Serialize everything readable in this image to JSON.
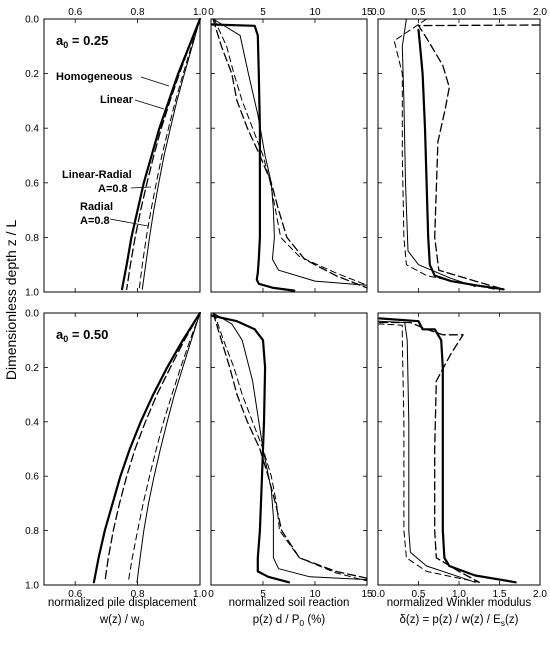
{
  "figure": {
    "y_axis_label": "Dimensionless depth  z / L",
    "panel_labels": [
      {
        "text": "a",
        "sub": "0",
        "value": " = 0.25"
      },
      {
        "text": "a",
        "sub": "0",
        "value": " = 0.50"
      }
    ],
    "curve_annotations": [
      "Homogeneous",
      "Linear",
      "Linear-Radial",
      "A=0.8",
      "Radial",
      "A=0.8"
    ],
    "column_captions": [
      {
        "line1": "normalized pile displacement",
        "line2_parts": [
          "w(z) / w",
          "0",
          ""
        ]
      },
      {
        "line1": "normalized soil reaction",
        "line2_parts": [
          "p(z) d / P",
          "0",
          " (%)"
        ]
      },
      {
        "line1": "normalized Winkler modulus",
        "line2_parts": [
          "δ(z) = p(z) / w(z) / E",
          "s",
          "(z)"
        ]
      }
    ]
  },
  "chart_data": [
    {
      "type": "line",
      "panel": "a0=0.25 displacement",
      "xlim": [
        0.5,
        1.0
      ],
      "ylim": [
        0,
        1.0
      ],
      "y_inverted": true,
      "xticks": [
        "0.6",
        "0.8",
        "1.0"
      ],
      "xtick_values": [
        0.6,
        0.8,
        1.0
      ],
      "xticks_position": "top",
      "yticks": [
        "0.0",
        "0.2",
        "0.4",
        "0.6",
        "0.8",
        "1.0"
      ],
      "series": [
        {
          "name": "Homogeneous",
          "style": "thick-solid",
          "x": [
            1.0,
            0.965,
            0.93,
            0.9,
            0.87,
            0.845,
            0.82,
            0.8,
            0.78,
            0.765,
            0.75
          ],
          "y": [
            0,
            0.1,
            0.2,
            0.3,
            0.4,
            0.5,
            0.6,
            0.7,
            0.8,
            0.9,
            0.99
          ]
        },
        {
          "name": "Linear",
          "style": "dashed",
          "x": [
            1.0,
            0.966,
            0.934,
            0.904,
            0.876,
            0.852,
            0.83,
            0.81,
            0.792,
            0.777,
            0.765
          ],
          "y": [
            0,
            0.1,
            0.2,
            0.3,
            0.4,
            0.5,
            0.6,
            0.7,
            0.8,
            0.9,
            0.99
          ]
        },
        {
          "name": "Linear-Radial A=0.8",
          "style": "thin-dashed",
          "x": [
            1.0,
            0.972,
            0.946,
            0.921,
            0.899,
            0.878,
            0.86,
            0.843,
            0.828,
            0.815,
            0.805
          ],
          "y": [
            0,
            0.1,
            0.2,
            0.3,
            0.4,
            0.5,
            0.6,
            0.7,
            0.8,
            0.9,
            0.99
          ]
        },
        {
          "name": "Radial A=0.8",
          "style": "thin-solid",
          "x": [
            1.0,
            0.975,
            0.95,
            0.926,
            0.905,
            0.885,
            0.868,
            0.852,
            0.838,
            0.826,
            0.815
          ],
          "y": [
            0,
            0.1,
            0.2,
            0.3,
            0.4,
            0.5,
            0.6,
            0.7,
            0.8,
            0.9,
            0.99
          ]
        }
      ]
    },
    {
      "type": "line",
      "panel": "a0=0.25 soil reaction",
      "xlim": [
        0,
        15
      ],
      "ylim": [
        0,
        1.0
      ],
      "y_inverted": true,
      "xticks": [
        "0",
        "5",
        "10",
        "15"
      ],
      "xtick_values": [
        0,
        5,
        10,
        15
      ],
      "xticks_position": "top",
      "series": [
        {
          "name": "Homogeneous",
          "style": "thick-solid",
          "x": [
            0.1,
            4.2,
            4.5,
            4.6,
            4.7,
            4.7,
            4.7,
            4.6,
            4.5,
            4.4,
            4.6,
            6.0,
            8.0
          ],
          "y": [
            0.02,
            0.025,
            0.06,
            0.2,
            0.4,
            0.6,
            0.8,
            0.88,
            0.93,
            0.955,
            0.97,
            0.985,
            0.995
          ]
        },
        {
          "name": "Linear",
          "style": "dashed",
          "x": [
            0.2,
            1.0,
            2.0,
            2.5,
            3.5,
            4.7,
            5.8,
            6.5,
            7.3,
            9.0,
            12.0,
            15.0
          ],
          "y": [
            0.0,
            0.1,
            0.2,
            0.3,
            0.4,
            0.5,
            0.6,
            0.7,
            0.8,
            0.88,
            0.94,
            0.985
          ]
        },
        {
          "name": "Linear-Radial A=0.8",
          "style": "thin-dashed",
          "x": [
            0.3,
            1.5,
            2.2,
            3.0,
            4.0,
            5.0,
            5.7,
            6.2,
            6.7,
            8.5,
            12.0,
            15.0
          ],
          "y": [
            0.0,
            0.1,
            0.2,
            0.3,
            0.4,
            0.5,
            0.6,
            0.7,
            0.8,
            0.87,
            0.93,
            0.975
          ]
        },
        {
          "name": "Radial A=0.8",
          "style": "thin-solid",
          "x": [
            0.2,
            2.8,
            3.6,
            4.5,
            5.2,
            5.8,
            6.0,
            6.1,
            5.9,
            6.5,
            10.0,
            15.0
          ],
          "y": [
            0.0,
            0.06,
            0.2,
            0.35,
            0.5,
            0.6,
            0.7,
            0.8,
            0.88,
            0.92,
            0.96,
            0.975
          ]
        }
      ]
    },
    {
      "type": "line",
      "panel": "a0=0.25 Winkler modulus",
      "xlim": [
        0,
        2.0
      ],
      "ylim": [
        0,
        1.0
      ],
      "y_inverted": true,
      "xticks": [
        "0.0",
        "0.5",
        "1.0",
        "1.5",
        "2.0"
      ],
      "xtick_values": [
        0.0,
        0.5,
        1.0,
        1.5,
        2.0
      ],
      "xticks_position": "top",
      "series": [
        {
          "name": "Homogeneous",
          "style": "thick-solid",
          "x": [
            0.5,
            0.52,
            0.55,
            0.58,
            0.6,
            0.62,
            0.64,
            0.7,
            0.9,
            1.2,
            1.55
          ],
          "y": [
            0.04,
            0.1,
            0.2,
            0.4,
            0.6,
            0.8,
            0.9,
            0.94,
            0.96,
            0.975,
            0.99
          ]
        },
        {
          "name": "Linear",
          "style": "dashed",
          "x": [
            2.0,
            0.5,
            0.6,
            0.8,
            0.88,
            0.83,
            0.74,
            0.7,
            0.75,
            1.2,
            1.55
          ],
          "y": [
            0.022,
            0.024,
            0.07,
            0.17,
            0.25,
            0.33,
            0.45,
            0.8,
            0.92,
            0.96,
            0.99
          ]
        },
        {
          "name": "Linear-Radial A=0.8",
          "style": "thin-dashed",
          "x": [
            0.6,
            0.2,
            0.3,
            0.3,
            0.32,
            0.35,
            0.6,
            1.0,
            1.45
          ],
          "y": [
            0.0,
            0.08,
            0.2,
            0.5,
            0.8,
            0.9,
            0.94,
            0.965,
            0.99
          ]
        },
        {
          "name": "Radial A=0.8",
          "style": "thin-solid",
          "x": [
            0.35,
            0.3,
            0.32,
            0.34,
            0.37,
            0.5,
            0.9,
            1.2
          ],
          "y": [
            0.0,
            0.1,
            0.3,
            0.6,
            0.85,
            0.9,
            0.95,
            0.98
          ]
        }
      ]
    },
    {
      "type": "line",
      "panel": "a0=0.50 displacement",
      "xlim": [
        0.5,
        1.0
      ],
      "ylim": [
        0,
        1.0
      ],
      "y_inverted": true,
      "xticks": [
        "0.6",
        "0.8",
        "1.0"
      ],
      "xtick_values": [
        0.6,
        0.8,
        1.0
      ],
      "xticks_position": "bottom",
      "yticks": [
        "0.0",
        "0.2",
        "0.4",
        "0.6",
        "0.8",
        "1.0"
      ],
      "series": [
        {
          "name": "Homogeneous",
          "style": "thick-solid",
          "x": [
            1.0,
            0.945,
            0.895,
            0.85,
            0.81,
            0.775,
            0.745,
            0.72,
            0.695,
            0.675,
            0.66
          ],
          "y": [
            0,
            0.1,
            0.2,
            0.3,
            0.4,
            0.5,
            0.6,
            0.7,
            0.8,
            0.9,
            0.99
          ]
        },
        {
          "name": "Linear",
          "style": "dashed",
          "x": [
            1.0,
            0.95,
            0.905,
            0.862,
            0.825,
            0.792,
            0.765,
            0.742,
            0.722,
            0.706,
            0.695
          ],
          "y": [
            0,
            0.1,
            0.2,
            0.3,
            0.4,
            0.5,
            0.6,
            0.7,
            0.8,
            0.9,
            0.99
          ]
        },
        {
          "name": "Linear-Radial A=0.8",
          "style": "thin-dashed",
          "x": [
            1.0,
            0.968,
            0.938,
            0.91,
            0.883,
            0.86,
            0.838,
            0.818,
            0.8,
            0.783,
            0.77
          ],
          "y": [
            0,
            0.1,
            0.2,
            0.3,
            0.4,
            0.5,
            0.6,
            0.7,
            0.8,
            0.9,
            0.99
          ]
        },
        {
          "name": "Radial A=0.8",
          "style": "thin-solid",
          "x": [
            1.0,
            0.972,
            0.945,
            0.918,
            0.895,
            0.873,
            0.853,
            0.835,
            0.82,
            0.808,
            0.798
          ],
          "y": [
            0,
            0.1,
            0.2,
            0.3,
            0.4,
            0.5,
            0.6,
            0.7,
            0.8,
            0.9,
            0.99
          ]
        }
      ]
    },
    {
      "type": "line",
      "panel": "a0=0.50 soil reaction",
      "xlim": [
        0,
        15
      ],
      "ylim": [
        0,
        1.0
      ],
      "y_inverted": true,
      "xticks": [
        "0",
        "5",
        "10",
        "15"
      ],
      "xtick_values": [
        0,
        5,
        10,
        15
      ],
      "xticks_position": "bottom",
      "series": [
        {
          "name": "Homogeneous",
          "style": "thick-solid",
          "x": [
            0.1,
            2.5,
            4.2,
            5.0,
            5.2,
            5.1,
            4.9,
            4.7,
            4.5,
            4.5,
            5.5,
            7.5
          ],
          "y": [
            0.01,
            0.03,
            0.06,
            0.1,
            0.2,
            0.4,
            0.6,
            0.8,
            0.9,
            0.95,
            0.97,
            0.99
          ]
        },
        {
          "name": "Linear",
          "style": "dashed",
          "x": [
            0.2,
            1.0,
            1.8,
            2.5,
            3.5,
            4.7,
            5.5,
            6.2,
            6.8,
            8.5,
            12.0,
            15.0
          ],
          "y": [
            0.0,
            0.1,
            0.2,
            0.3,
            0.4,
            0.5,
            0.6,
            0.7,
            0.8,
            0.9,
            0.95,
            0.975
          ]
        },
        {
          "name": "Linear-Radial A=0.8",
          "style": "thin-dashed",
          "x": [
            0.3,
            1.2,
            2.2,
            3.0,
            4.0,
            5.0,
            5.8,
            6.3,
            6.6,
            8.5,
            12.0,
            15.0
          ],
          "y": [
            0.0,
            0.1,
            0.2,
            0.3,
            0.4,
            0.5,
            0.6,
            0.7,
            0.8,
            0.9,
            0.955,
            0.985
          ]
        },
        {
          "name": "Radial A=0.8",
          "style": "thin-solid",
          "x": [
            0.2,
            2.0,
            3.0,
            4.0,
            5.0,
            5.8,
            6.0,
            6.0,
            6.0,
            6.5,
            9.5,
            15.0
          ],
          "y": [
            0.0,
            0.04,
            0.1,
            0.25,
            0.5,
            0.65,
            0.75,
            0.85,
            0.9,
            0.94,
            0.97,
            0.98
          ]
        }
      ]
    },
    {
      "type": "line",
      "panel": "a0=0.50 Winkler modulus",
      "xlim": [
        0,
        2.0
      ],
      "ylim": [
        0,
        1.0
      ],
      "y_inverted": true,
      "xticks": [
        "0.0",
        "0.5",
        "1.0",
        "1.5",
        "2.0"
      ],
      "xtick_values": [
        0.0,
        0.5,
        1.0,
        1.5,
        2.0
      ],
      "xticks_position": "bottom",
      "series": [
        {
          "name": "Homogeneous",
          "style": "thick-solid",
          "x": [
            0.02,
            0.5,
            0.55,
            0.7,
            0.78,
            0.8,
            0.8,
            0.8,
            0.82,
            0.88,
            1.2,
            1.7
          ],
          "y": [
            0.02,
            0.03,
            0.06,
            0.06,
            0.1,
            0.2,
            0.5,
            0.8,
            0.9,
            0.93,
            0.965,
            0.99
          ]
        },
        {
          "name": "Linear",
          "style": "dashed",
          "x": [
            0.02,
            0.4,
            0.6,
            0.8,
            1.05,
            0.9,
            0.72,
            0.7,
            0.7,
            0.72,
            1.0,
            1.25
          ],
          "y": [
            0.035,
            0.035,
            0.06,
            0.08,
            0.08,
            0.15,
            0.25,
            0.5,
            0.8,
            0.9,
            0.95,
            0.99
          ]
        },
        {
          "name": "Linear-Radial A=0.8",
          "style": "thin-dashed",
          "x": [
            0.0,
            0.3,
            0.3,
            0.32,
            0.32,
            0.35,
            0.6,
            1.0,
            1.25
          ],
          "y": [
            0.04,
            0.045,
            0.1,
            0.4,
            0.8,
            0.9,
            0.95,
            0.975,
            0.99
          ]
        },
        {
          "name": "Radial A=0.8",
          "style": "thin-solid",
          "x": [
            0.0,
            0.33,
            0.36,
            0.38,
            0.38,
            0.4,
            0.6,
            1.0,
            1.2
          ],
          "y": [
            0.03,
            0.035,
            0.1,
            0.4,
            0.8,
            0.88,
            0.93,
            0.97,
            0.99
          ]
        }
      ]
    }
  ]
}
